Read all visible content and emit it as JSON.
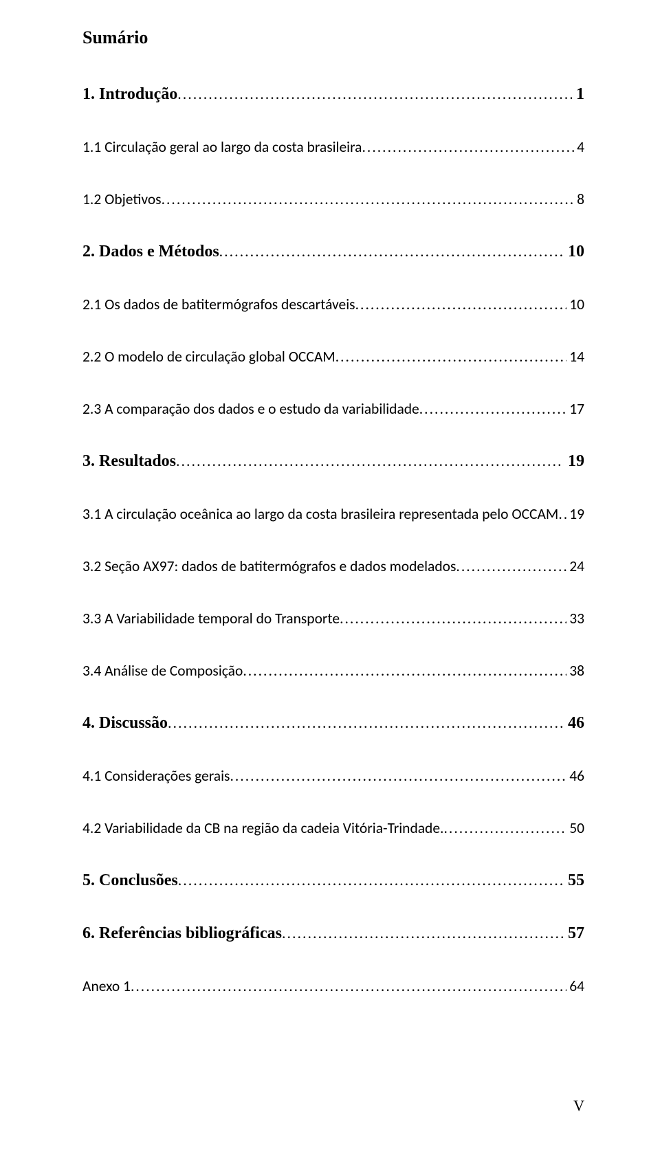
{
  "title": "Sumário",
  "page_footer": "V",
  "colors": {
    "text": "#000000",
    "background": "#ffffff"
  },
  "toc": [
    {
      "level": 1,
      "label": "1. Introdução",
      "page": "1",
      "page_spaced": true
    },
    {
      "level": 2,
      "label": "1.1 Circulação geral ao largo da costa brasileira",
      "page": "4"
    },
    {
      "level": 2,
      "label": "1.2 Objetivos",
      "page": "8"
    },
    {
      "level": 1,
      "label": "2. Dados e Métodos",
      "page": "10",
      "page_spaced": true
    },
    {
      "level": 2,
      "label": "2.1 Os dados de batitermógrafos descartáveis",
      "page": "10"
    },
    {
      "level": 2,
      "label": "2.2 O modelo de circulação global OCCAM",
      "page": "14"
    },
    {
      "level": 2,
      "label": "2.3 A comparação dos dados e o estudo da variabilidade",
      "page": "17"
    },
    {
      "level": 1,
      "label": "3. Resultados",
      "page": "19",
      "page_spaced": true
    },
    {
      "level": 2,
      "label": "3.1 A circulação oceânica ao largo da costa brasileira representada pelo OCCAM",
      "page": "19"
    },
    {
      "level": 2,
      "label": "3.2 Seção AX97: dados de batitermógrafos e dados modelados",
      "page": "24"
    },
    {
      "level": 2,
      "label": "3.3 A Variabilidade temporal do Transporte",
      "page": "33"
    },
    {
      "level": 2,
      "label": "3.4 Análise de Composição",
      "page": "38"
    },
    {
      "level": 1,
      "label": "4. Discussão",
      "page": "46",
      "page_spaced": true
    },
    {
      "level": 2,
      "label": "4.1 Considerações gerais",
      "page": "46"
    },
    {
      "level": 2,
      "label": "4.2 Variabilidade da CB na região da cadeia Vitória-Trindade.",
      "page": "50"
    },
    {
      "level": 1,
      "label": "5. Conclusões",
      "page": "55",
      "page_spaced": true
    },
    {
      "level": 1,
      "label": "6. Referências bibliográficas",
      "page": "57",
      "page_spaced": true
    },
    {
      "level": 2,
      "label": "Anexo 1",
      "page": "64"
    }
  ]
}
